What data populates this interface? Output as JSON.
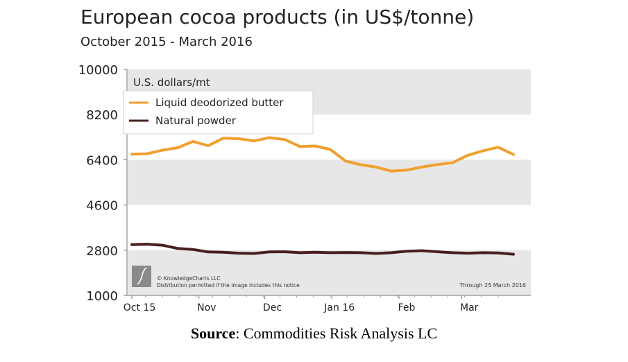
{
  "header": {
    "title": "European cocoa products (in US$/tonne)",
    "subtitle": "October 2015 - March 2016"
  },
  "source": {
    "label": "Source",
    "text": ": Commodities Risk Analysis LC"
  },
  "chart_data": {
    "type": "line",
    "title": "European cocoa products (in US$/tonne)",
    "subtitle": "October 2015 - March 2016",
    "ylabel": "U.S. dollars/mt",
    "ylim": [
      1000,
      10000
    ],
    "yticks": [
      1000,
      2800,
      4600,
      6400,
      8200,
      10000
    ],
    "ytick_labels": [
      "1000",
      "2800",
      "4600",
      "6400",
      "8200",
      "10000"
    ],
    "xticks": [
      {
        "label": "Oct 15",
        "x": 0
      },
      {
        "label": "Nov",
        "x": 4.4
      },
      {
        "label": "Dec",
        "x": 8.7
      },
      {
        "label": "Jan 16",
        "x": 13.1
      },
      {
        "label": "Feb",
        "x": 17.5
      },
      {
        "label": "Mar",
        "x": 21.6
      }
    ],
    "x": [
      0,
      1,
      2,
      3,
      4,
      5,
      6,
      7,
      8,
      9,
      10,
      11,
      12,
      13,
      14,
      15,
      16,
      17,
      18,
      19,
      20,
      21,
      22,
      23,
      24,
      25
    ],
    "series": [
      {
        "name": "Liquid deodorized butter",
        "color": "#f0a030",
        "values": [
          6620,
          6640,
          6780,
          6880,
          7130,
          6960,
          7260,
          7240,
          7150,
          7280,
          7210,
          6930,
          6950,
          6810,
          6350,
          6200,
          6110,
          5950,
          5990,
          6110,
          6210,
          6280,
          6580,
          6760,
          6900,
          6610
        ]
      },
      {
        "name": "Natural powder",
        "color": "#4a1e1e",
        "values": [
          3020,
          3040,
          3000,
          2870,
          2830,
          2730,
          2720,
          2680,
          2670,
          2730,
          2740,
          2700,
          2720,
          2700,
          2710,
          2700,
          2670,
          2700,
          2760,
          2780,
          2740,
          2700,
          2680,
          2700,
          2690,
          2640
        ]
      }
    ],
    "legend": {
      "position": "top-left",
      "entries": [
        "Liquid deodorized butter",
        "Natural powder"
      ]
    },
    "bands": [
      [
        8200,
        10000
      ],
      [
        4600,
        6400
      ],
      [
        1000,
        2800
      ]
    ],
    "copyright": "© KnowledgeCharts LLC",
    "notice": "Distribution permitted if the image includes this notice",
    "through": "Through 25 March 2016"
  }
}
